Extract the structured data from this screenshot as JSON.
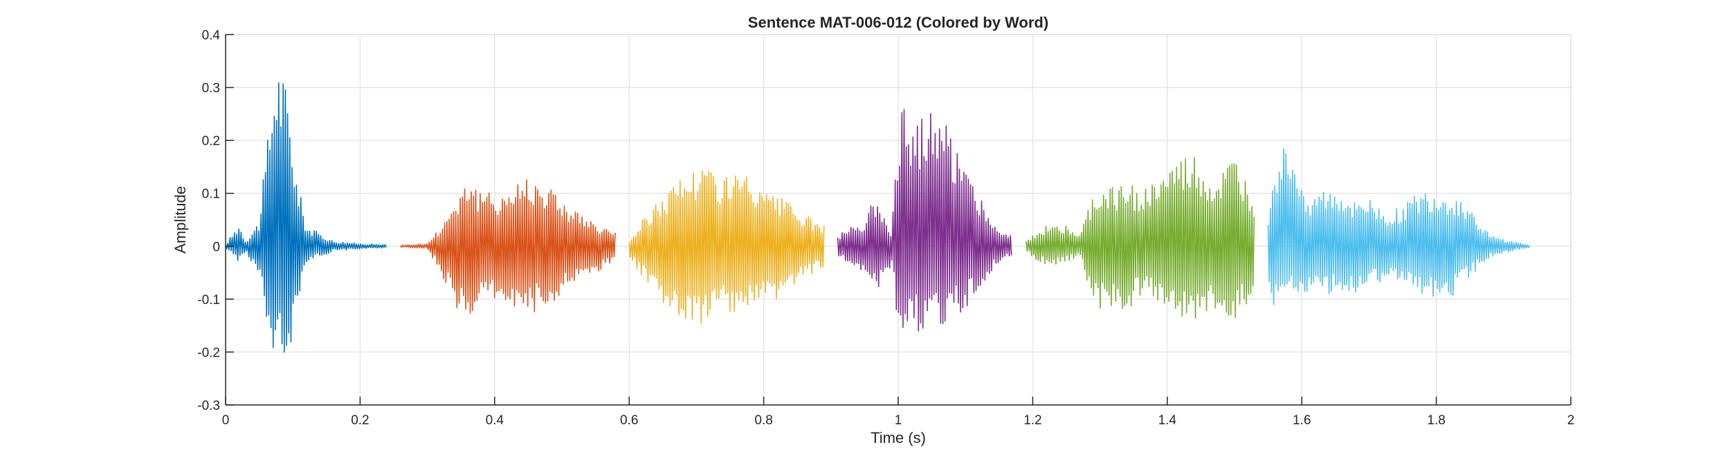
{
  "chart_data": {
    "type": "line",
    "title": "Sentence MAT-006-012 (Colored by Word)",
    "xlabel": "Time (s)",
    "ylabel": "Amplitude",
    "xlim": [
      0,
      2
    ],
    "ylim": [
      -0.3,
      0.4
    ],
    "xticks": [
      0,
      0.2,
      0.4,
      0.6,
      0.8,
      1,
      1.2,
      1.4,
      1.6,
      1.8,
      2
    ],
    "xtick_labels": [
      "0",
      "0.2",
      "0.4",
      "0.6",
      "0.8",
      "1",
      "1.2",
      "1.4",
      "1.6",
      "1.8",
      "2"
    ],
    "yticks": [
      -0.3,
      -0.2,
      -0.1,
      0,
      0.1,
      0.2,
      0.3,
      0.4
    ],
    "ytick_labels": [
      "-0.3",
      "-0.2",
      "-0.1",
      "0",
      "0.1",
      "0.2",
      "0.3",
      "0.4"
    ],
    "grid": true,
    "series": [
      {
        "color": "#0072BD",
        "x": [
          0.0,
          0.02,
          0.03,
          0.05,
          0.065,
          0.075,
          0.085,
          0.095,
          0.105,
          0.12,
          0.14,
          0.16,
          0.2,
          0.24
        ],
        "max": [
          0.003,
          0.045,
          0.01,
          0.05,
          0.24,
          0.37,
          0.34,
          0.27,
          0.14,
          0.04,
          0.025,
          0.01,
          0.005,
          0.003
        ],
        "min": [
          -0.003,
          -0.03,
          -0.01,
          -0.06,
          -0.2,
          -0.22,
          -0.21,
          -0.2,
          -0.12,
          -0.03,
          -0.02,
          -0.01,
          -0.005,
          -0.003
        ]
      },
      {
        "color": "#D95319",
        "x": [
          0.26,
          0.3,
          0.32,
          0.345,
          0.36,
          0.38,
          0.42,
          0.45,
          0.48,
          0.51,
          0.55,
          0.58
        ],
        "max": [
          0.002,
          0.005,
          0.04,
          0.1,
          0.14,
          0.1,
          0.11,
          0.14,
          0.12,
          0.08,
          0.04,
          0.03
        ],
        "min": [
          -0.002,
          -0.005,
          -0.05,
          -0.13,
          -0.15,
          -0.1,
          -0.11,
          -0.13,
          -0.12,
          -0.08,
          -0.05,
          -0.03
        ]
      },
      {
        "color": "#EDB120",
        "x": [
          0.6,
          0.62,
          0.65,
          0.68,
          0.71,
          0.74,
          0.77,
          0.8,
          0.83,
          0.86,
          0.89
        ],
        "max": [
          0.01,
          0.05,
          0.1,
          0.14,
          0.16,
          0.14,
          0.14,
          0.1,
          0.09,
          0.06,
          0.04
        ],
        "min": [
          -0.02,
          -0.06,
          -0.11,
          -0.14,
          -0.15,
          -0.13,
          -0.13,
          -0.12,
          -0.1,
          -0.06,
          -0.04
        ]
      },
      {
        "color": "#7E2F8E",
        "x": [
          0.91,
          0.93,
          0.95,
          0.97,
          0.98,
          0.99,
          1.0,
          1.01,
          1.04,
          1.07,
          1.1,
          1.12,
          1.15,
          1.17
        ],
        "max": [
          0.02,
          0.04,
          0.05,
          0.11,
          0.06,
          0.03,
          0.24,
          0.27,
          0.26,
          0.24,
          0.17,
          0.1,
          0.03,
          0.02
        ],
        "min": [
          -0.02,
          -0.04,
          -0.05,
          -0.08,
          -0.05,
          -0.04,
          -0.16,
          -0.17,
          -0.16,
          -0.15,
          -0.12,
          -0.08,
          -0.03,
          -0.02
        ]
      },
      {
        "color": "#77AC30",
        "x": [
          1.19,
          1.21,
          1.23,
          1.25,
          1.27,
          1.29,
          1.33,
          1.37,
          1.41,
          1.44,
          1.47,
          1.5,
          1.53
        ],
        "max": [
          0.01,
          0.03,
          0.05,
          0.04,
          0.02,
          0.1,
          0.12,
          0.11,
          0.16,
          0.17,
          0.12,
          0.17,
          0.09
        ],
        "min": [
          -0.01,
          -0.03,
          -0.04,
          -0.03,
          -0.02,
          -0.12,
          -0.13,
          -0.09,
          -0.14,
          -0.15,
          -0.12,
          -0.14,
          -0.1
        ]
      },
      {
        "color": "#4DBEEE",
        "x": [
          1.55,
          1.56,
          1.58,
          1.61,
          1.64,
          1.67,
          1.7,
          1.73,
          1.76,
          1.79,
          1.82,
          1.85,
          1.88,
          1.91,
          1.94
        ],
        "max": [
          0.07,
          0.16,
          0.2,
          0.1,
          0.11,
          0.1,
          0.09,
          0.06,
          0.09,
          0.11,
          0.1,
          0.08,
          0.02,
          0.01,
          0.002
        ],
        "min": [
          -0.08,
          -0.12,
          -0.09,
          -0.09,
          -0.09,
          -0.1,
          -0.08,
          -0.06,
          -0.08,
          -0.1,
          -0.1,
          -0.06,
          -0.02,
          -0.01,
          -0.002
        ]
      }
    ]
  }
}
